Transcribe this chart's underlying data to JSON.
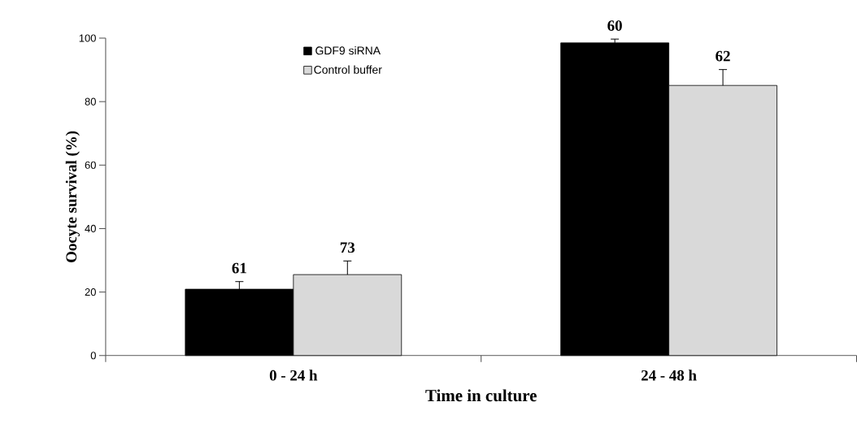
{
  "chart_data": {
    "type": "bar",
    "xlabel": "Time in culture",
    "ylabel": "Oocyte survival (%)",
    "categories": [
      "0 - 24 h",
      "24 - 48 h"
    ],
    "ylim": [
      0,
      100
    ],
    "yticks": [
      0,
      20,
      40,
      60,
      80,
      100
    ],
    "legend": "top",
    "series": [
      {
        "name": "GDF9 siRNA",
        "color": "#000000",
        "values": [
          20.9,
          98.5
        ],
        "errors": [
          2.4,
          1.2
        ]
      },
      {
        "name": "Control buffer",
        "color": "#d9d9d9",
        "values": [
          25.5,
          85.1
        ],
        "errors": [
          4.3,
          5.0
        ]
      }
    ],
    "annotations": [
      "61",
      "73",
      "60",
      "62"
    ]
  }
}
